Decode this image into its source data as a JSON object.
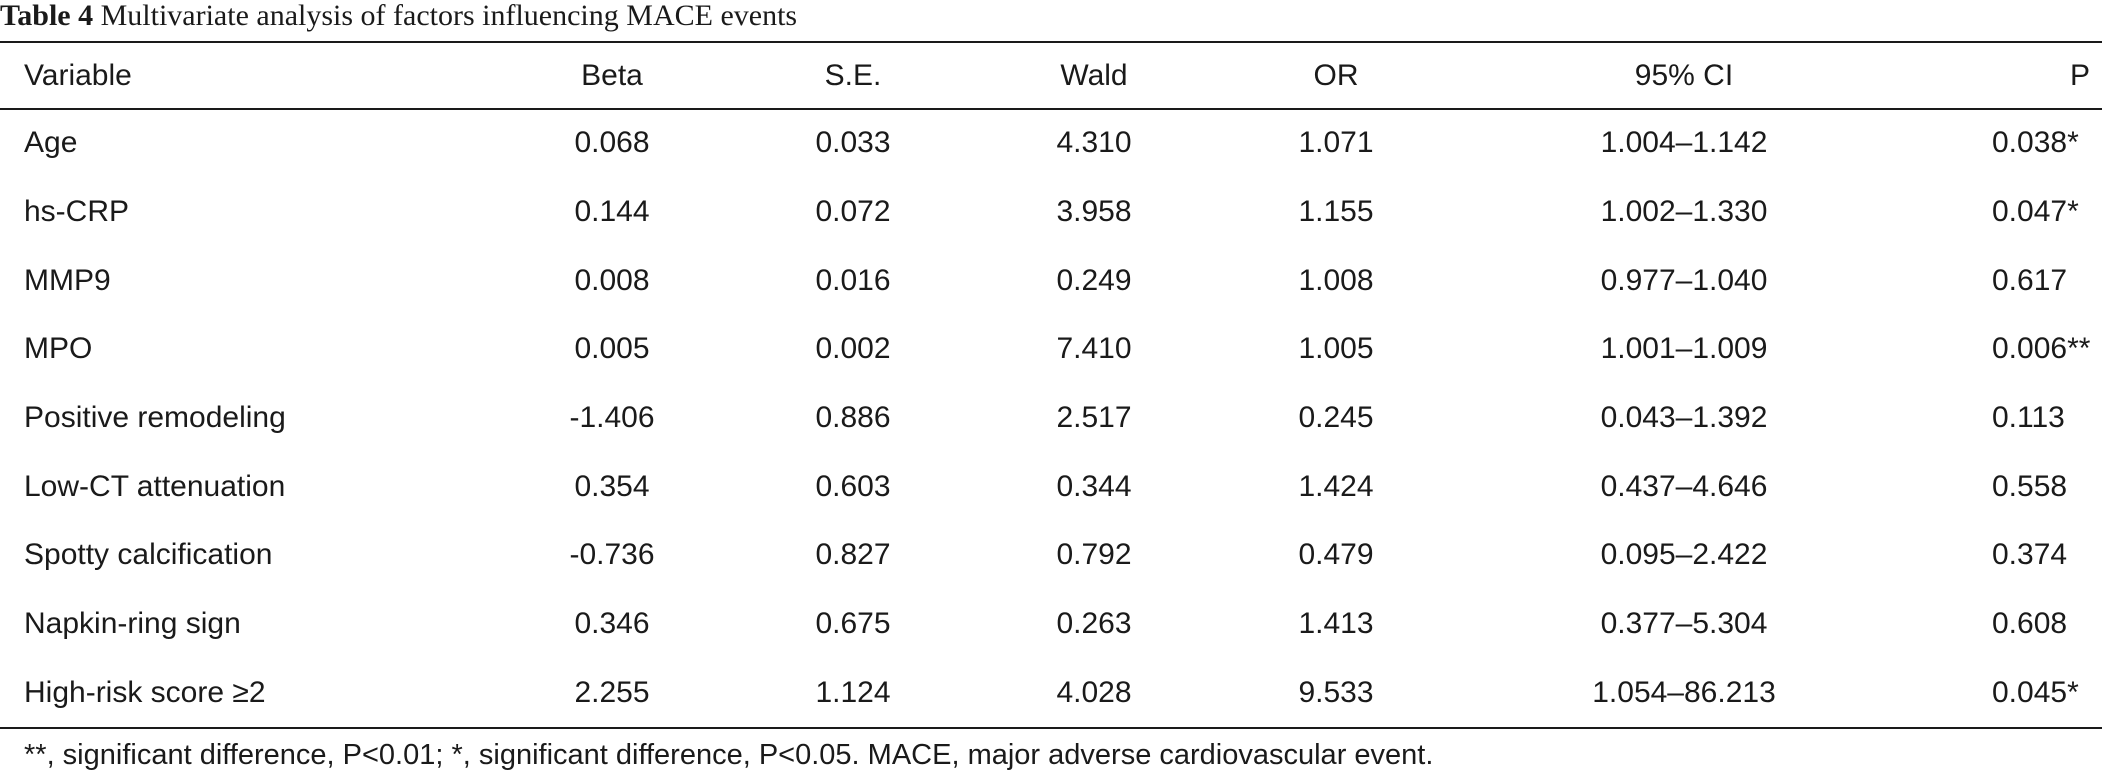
{
  "caption": {
    "label": "Table 4",
    "title": "Multivariate analysis of factors influencing MACE events"
  },
  "headers": [
    "Variable",
    "Beta",
    "S.E.",
    "Wald",
    "OR",
    "95% CI",
    "P"
  ],
  "rows": [
    [
      "Age",
      "0.068",
      "0.033",
      "4.310",
      "1.071",
      "1.004–1.142",
      "0.038*"
    ],
    [
      "hs-CRP",
      "0.144",
      "0.072",
      "3.958",
      "1.155",
      "1.002–1.330",
      "0.047*"
    ],
    [
      "MMP9",
      "0.008",
      "0.016",
      "0.249",
      "1.008",
      "0.977–1.040",
      "0.617"
    ],
    [
      "MPO",
      "0.005",
      "0.002",
      "7.410",
      "1.005",
      "1.001–1.009",
      "0.006**"
    ],
    [
      "Positive remodeling",
      "-1.406",
      "0.886",
      "2.517",
      "0.245",
      "0.043–1.392",
      "0.113"
    ],
    [
      "Low-CT attenuation",
      "0.354",
      "0.603",
      "0.344",
      "1.424",
      "0.437–4.646",
      "0.558"
    ],
    [
      "Spotty calcification",
      "-0.736",
      "0.827",
      "0.792",
      "0.479",
      "0.095–2.422",
      "0.374"
    ],
    [
      "Napkin-ring sign",
      "0.346",
      "0.675",
      "0.263",
      "1.413",
      "0.377–5.304",
      "0.608"
    ],
    [
      "High-risk score ≥2",
      "2.255",
      "1.124",
      "4.028",
      "9.533",
      "1.054–86.213",
      "0.045*"
    ]
  ],
  "footnote": "**, significant difference, P<0.01; *, significant difference, P<0.05. MACE, major adverse cardiovascular event."
}
